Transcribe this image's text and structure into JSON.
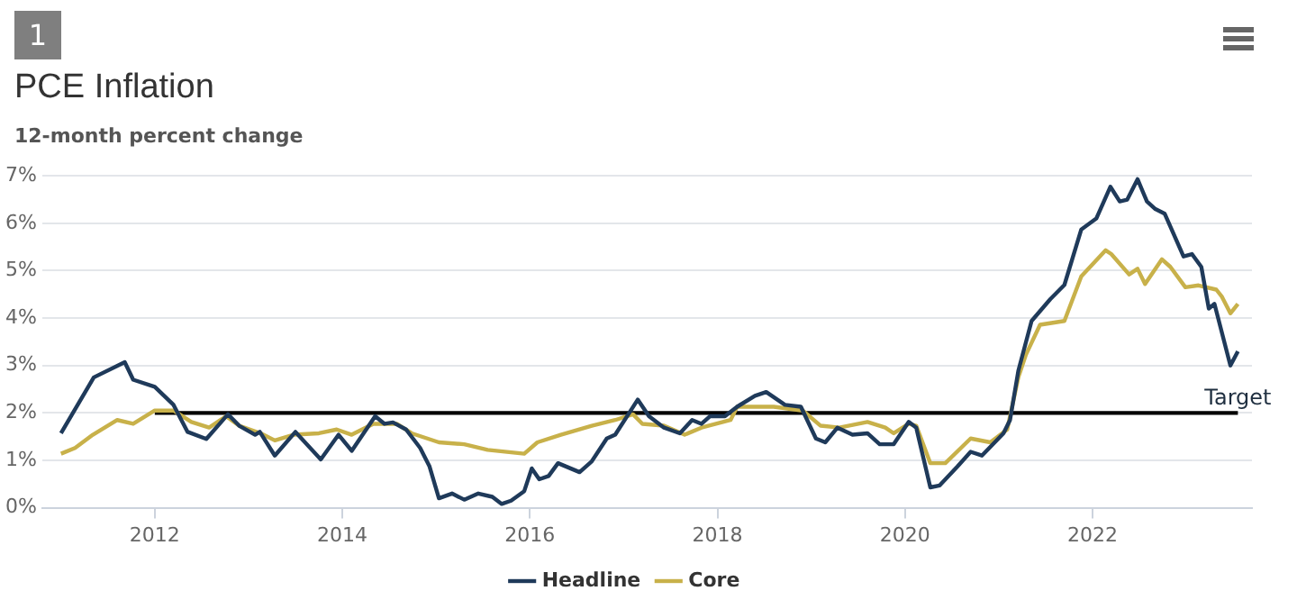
{
  "chart_data": {
    "type": "line",
    "title": "PCE Inflation",
    "subtitle": "12-month percent change",
    "annotations": [
      "1",
      {
        "text": "Target",
        "x": 2023.55,
        "y": 2
      }
    ],
    "xlim": [
      2010.8,
      2023.7
    ],
    "xticks": [
      2012,
      2014,
      2016,
      2018,
      2020,
      2022
    ],
    "ylim": [
      0,
      7
    ],
    "yticks": [
      {
        "value": 0,
        "label": "0%"
      },
      {
        "value": 1,
        "label": "1%"
      },
      {
        "value": 2,
        "label": "2%"
      },
      {
        "value": 3,
        "label": "3%"
      },
      {
        "value": 4,
        "label": "4%"
      },
      {
        "value": 5,
        "label": "5%"
      },
      {
        "value": 6,
        "label": "6%"
      },
      {
        "value": 7,
        "label": "7%"
      }
    ],
    "grid": "y",
    "legend": "bottom",
    "marker": "none",
    "line_style": "solid",
    "series": [
      {
        "name": "Headline",
        "color": "#1f3a5a",
        "x": [
          2011.0,
          2011.35,
          2011.68,
          2011.77,
          2012.0,
          2012.2,
          2012.35,
          2012.55,
          2012.78,
          2012.9,
          2013.07,
          2013.12,
          2013.28,
          2013.5,
          2013.77,
          2013.96,
          2014.1,
          2014.35,
          2014.45,
          2014.54,
          2014.68,
          2014.83,
          2014.93,
          2015.03,
          2015.17,
          2015.3,
          2015.45,
          2015.6,
          2015.7,
          2015.8,
          2015.94,
          2016.02,
          2016.1,
          2016.2,
          2016.3,
          2016.53,
          2016.66,
          2016.82,
          2016.91,
          2017.15,
          2017.27,
          2017.43,
          2017.6,
          2017.73,
          2017.83,
          2017.92,
          2018.08,
          2018.21,
          2018.4,
          2018.52,
          2018.72,
          2018.89,
          2019.05,
          2019.15,
          2019.28,
          2019.44,
          2019.6,
          2019.73,
          2019.88,
          2020.04,
          2020.12,
          2020.27,
          2020.37,
          2020.56,
          2020.7,
          2020.82,
          2021.05,
          2021.12,
          2021.21,
          2021.35,
          2021.55,
          2021.7,
          2021.88,
          2022.04,
          2022.19,
          2022.29,
          2022.37,
          2022.48,
          2022.58,
          2022.67,
          2022.77,
          2022.97,
          2023.06,
          2023.16,
          2023.24,
          2023.3,
          2023.47,
          2023.55
        ],
        "values": [
          1.57,
          2.75,
          3.07,
          2.7,
          2.55,
          2.17,
          1.6,
          1.45,
          1.97,
          1.73,
          1.54,
          1.6,
          1.1,
          1.6,
          1.02,
          1.54,
          1.2,
          1.93,
          1.77,
          1.8,
          1.65,
          1.26,
          0.87,
          0.2,
          0.3,
          0.17,
          0.3,
          0.23,
          0.08,
          0.15,
          0.35,
          0.83,
          0.6,
          0.67,
          0.94,
          0.75,
          0.98,
          1.46,
          1.54,
          2.28,
          1.93,
          1.69,
          1.57,
          1.85,
          1.77,
          1.93,
          1.93,
          2.13,
          2.36,
          2.44,
          2.17,
          2.13,
          1.46,
          1.38,
          1.69,
          1.54,
          1.57,
          1.34,
          1.34,
          1.81,
          1.69,
          0.43,
          0.47,
          0.87,
          1.18,
          1.1,
          1.57,
          1.85,
          2.9,
          3.94,
          4.4,
          4.7,
          5.87,
          6.1,
          6.77,
          6.46,
          6.5,
          6.93,
          6.46,
          6.3,
          6.2,
          5.3,
          5.35,
          5.08,
          4.2,
          4.3,
          3.0,
          3.3
        ]
      },
      {
        "name": "Core",
        "color": "#c8b14a",
        "x": [
          2011.0,
          2011.15,
          2011.34,
          2011.6,
          2011.77,
          2012.0,
          2012.2,
          2012.39,
          2012.58,
          2012.76,
          2012.9,
          2013.13,
          2013.28,
          2013.48,
          2013.75,
          2013.94,
          2014.1,
          2014.33,
          2014.58,
          2014.74,
          2015.03,
          2015.3,
          2015.55,
          2015.94,
          2016.08,
          2016.33,
          2016.66,
          2016.91,
          2017.1,
          2017.2,
          2017.43,
          2017.65,
          2017.83,
          2018.14,
          2018.21,
          2018.6,
          2018.91,
          2019.1,
          2019.3,
          2019.6,
          2019.79,
          2019.88,
          2020.04,
          2020.12,
          2020.27,
          2020.43,
          2020.7,
          2020.91,
          2021.09,
          2021.21,
          2021.29,
          2021.44,
          2021.7,
          2021.88,
          2022.14,
          2022.2,
          2022.39,
          2022.48,
          2022.56,
          2022.74,
          2022.83,
          2022.99,
          2023.13,
          2023.32,
          2023.38,
          2023.47,
          2023.55
        ],
        "values": [
          1.14,
          1.26,
          1.54,
          1.85,
          1.77,
          2.05,
          2.05,
          1.81,
          1.69,
          1.93,
          1.73,
          1.57,
          1.42,
          1.54,
          1.57,
          1.65,
          1.54,
          1.77,
          1.77,
          1.57,
          1.38,
          1.34,
          1.22,
          1.14,
          1.38,
          1.54,
          1.73,
          1.85,
          1.97,
          1.77,
          1.73,
          1.54,
          1.69,
          1.85,
          2.13,
          2.13,
          2.05,
          1.73,
          1.69,
          1.81,
          1.69,
          1.57,
          1.77,
          1.73,
          0.94,
          0.94,
          1.46,
          1.38,
          1.65,
          2.76,
          3.23,
          3.86,
          3.94,
          4.88,
          5.43,
          5.35,
          4.92,
          5.04,
          4.72,
          5.24,
          5.08,
          4.65,
          4.69,
          4.6,
          4.45,
          4.1,
          4.3
        ]
      },
      {
        "color": "#000000",
        "x": [
          2012.0,
          2023.55
        ],
        "values": [
          2,
          2
        ]
      }
    ]
  }
}
